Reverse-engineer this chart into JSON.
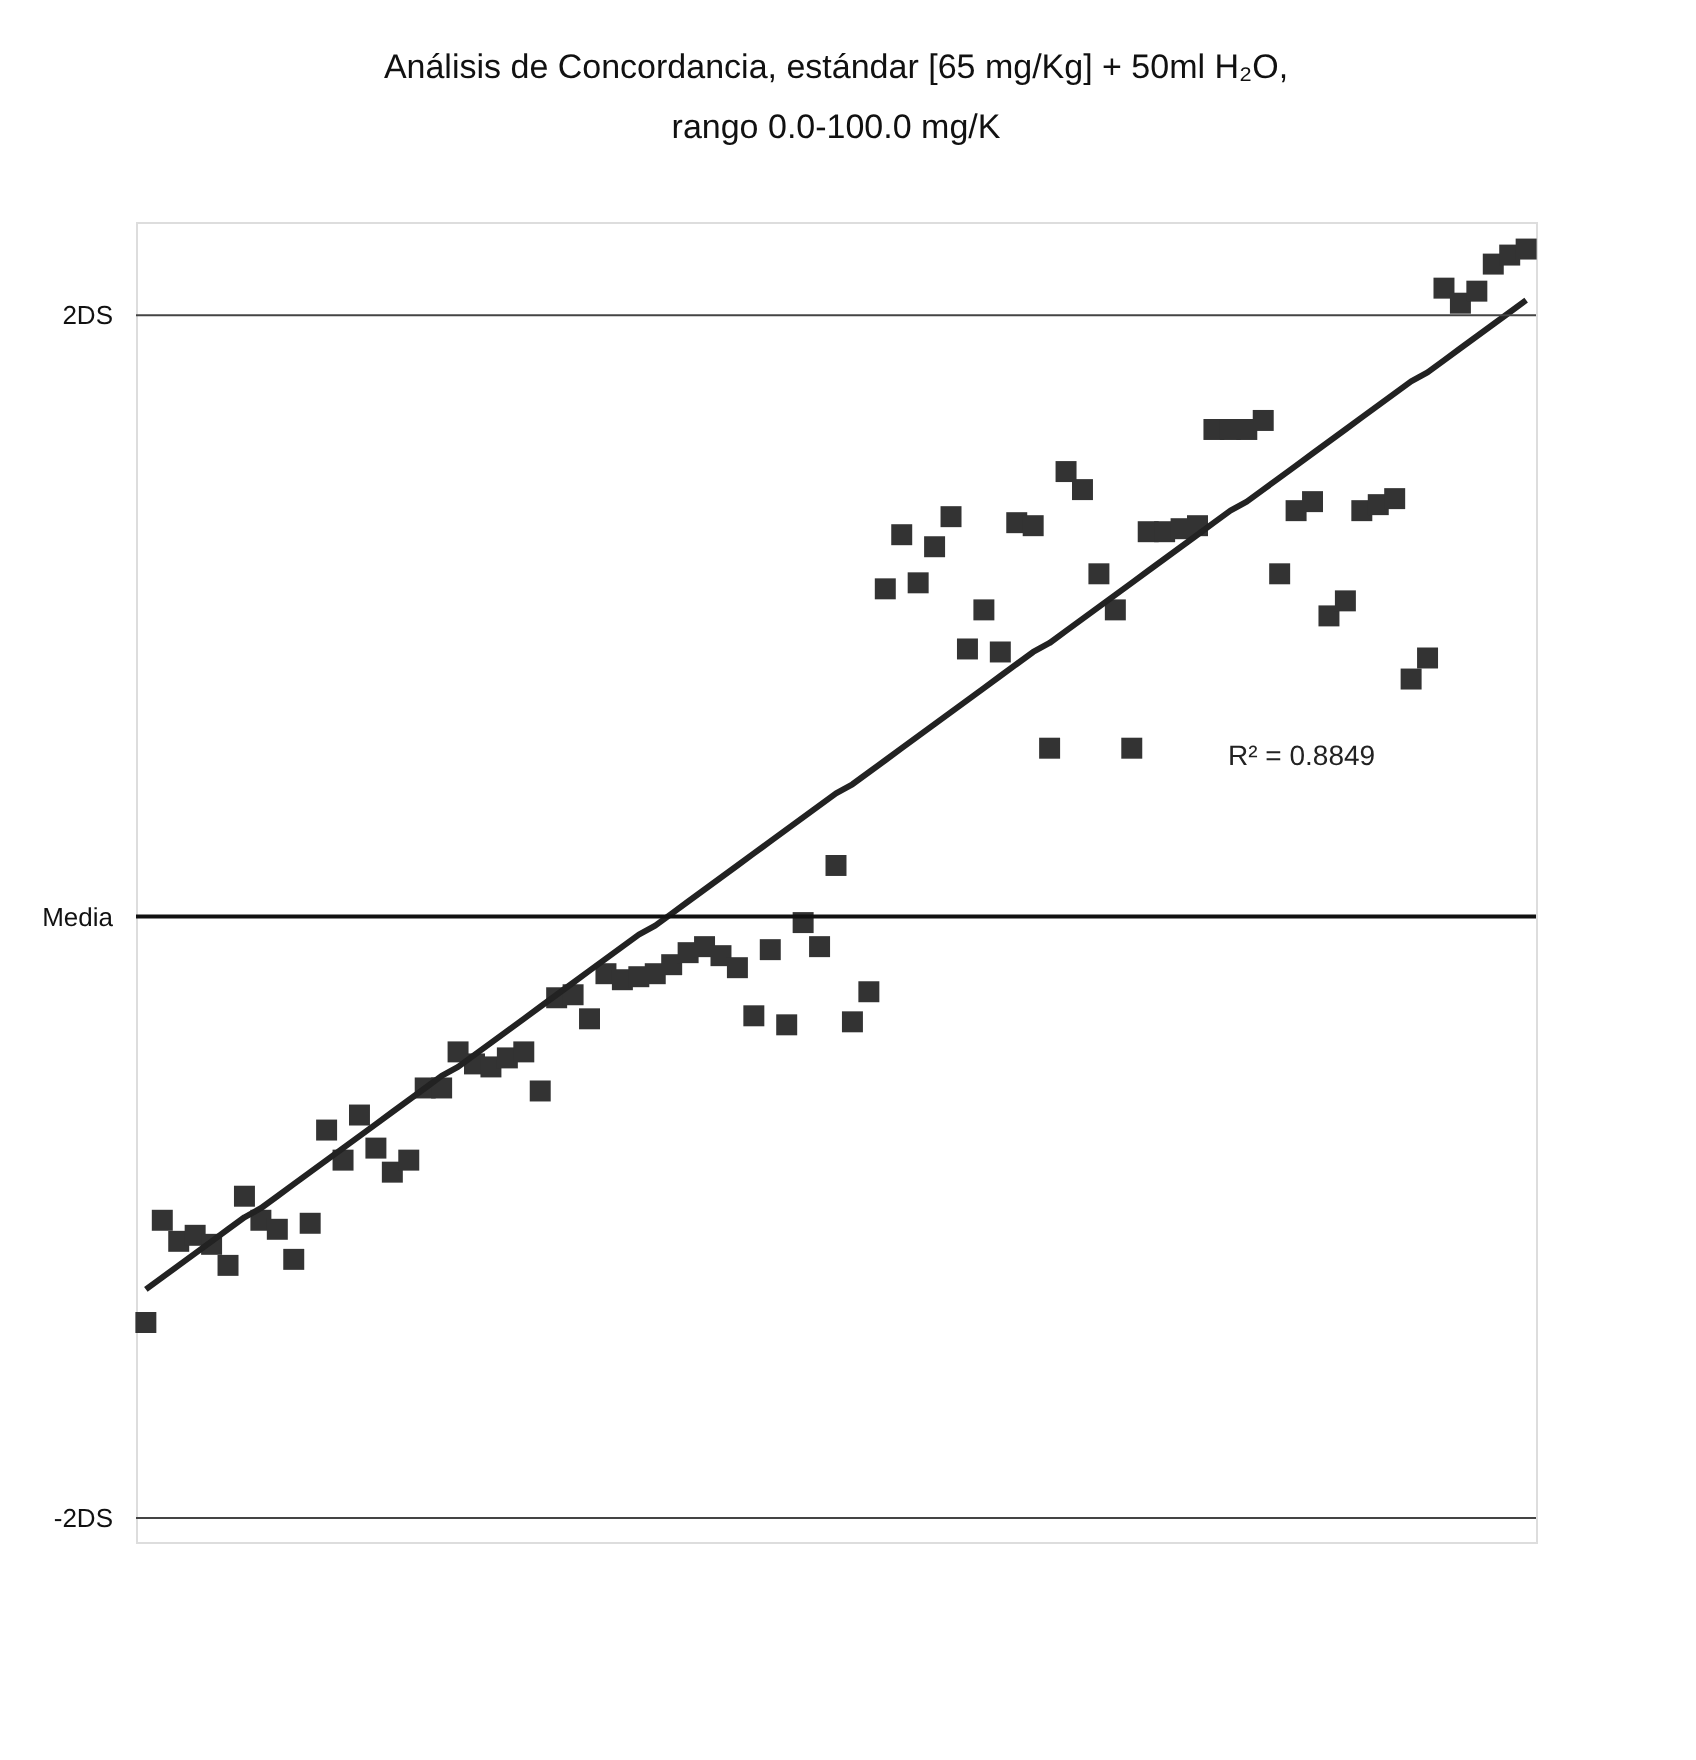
{
  "chart_data": {
    "type": "scatter",
    "title": "Análisis de Concordancia, estándar [65 mg/Kg] + 50ml H₂O,\nrango  0.0-100.0 mg/K",
    "categories": [
      null,
      null,
      null,
      null,
      null,
      null,
      null,
      null,
      null,
      null,
      null,
      null,
      null,
      null,
      null,
      null,
      null,
      null,
      null,
      null,
      null,
      null,
      null,
      null,
      null,
      null,
      null,
      null,
      null,
      null,
      null,
      null,
      null,
      null,
      null,
      null,
      null,
      null,
      null,
      null,
      null,
      null,
      null,
      null,
      null,
      null,
      null,
      null,
      null,
      null,
      null,
      null,
      null,
      null,
      null,
      null,
      null,
      null,
      null,
      null,
      null,
      null,
      null,
      null,
      null,
      null,
      null,
      null,
      null,
      null,
      null,
      null,
      null,
      null,
      null,
      null,
      null,
      null,
      null,
      null,
      null,
      null,
      null,
      null,
      null
    ],
    "series": [
      {
        "color": "#333333",
        "marker": "square",
        "values": [
          -1.35,
          -1.01,
          -1.08,
          -1.06,
          -1.09,
          -1.16,
          -0.93,
          -1.01,
          -1.04,
          -1.14,
          -1.02,
          -0.71,
          -0.81,
          -0.66,
          -0.77,
          -0.85,
          -0.81,
          -0.57,
          -0.57,
          -0.45,
          -0.49,
          -0.5,
          -0.47,
          -0.45,
          -0.58,
          -0.27,
          -0.26,
          -0.34,
          -0.19,
          -0.21,
          -0.2,
          -0.19,
          -0.16,
          -0.12,
          -0.1,
          -0.13,
          -0.17,
          -0.33,
          -0.11,
          -0.36,
          -0.02,
          -0.1,
          0.17,
          -0.35,
          -0.25,
          1.09,
          1.27,
          1.11,
          1.23,
          1.33,
          0.89,
          1.02,
          0.88,
          1.31,
          1.3,
          0.56,
          1.48,
          1.42,
          1.14,
          1.02,
          0.56,
          1.28,
          1.28,
          1.29,
          1.3,
          1.62,
          1.62,
          1.62,
          1.65,
          1.14,
          1.35,
          1.38,
          1.0,
          1.05,
          1.35,
          1.37,
          1.39,
          0.79,
          0.86,
          2.09,
          2.04,
          2.08,
          2.17,
          2.2,
          2.22
        ]
      },
      {
        "type": "line",
        "color": "#222222",
        "marker": "none",
        "line_style": "solid",
        "values": [
          -1.24,
          -1.2,
          -1.16,
          -1.12,
          -1.08,
          -1.04,
          -1.0,
          -0.97,
          -0.93,
          -0.89,
          -0.85,
          -0.81,
          -0.77,
          -0.73,
          -0.69,
          -0.65,
          -0.61,
          -0.57,
          -0.53,
          -0.5,
          -0.46,
          -0.42,
          -0.38,
          -0.34,
          -0.3,
          -0.26,
          -0.22,
          -0.18,
          -0.14,
          -0.1,
          -0.06,
          -0.03,
          0.01,
          0.05,
          0.09,
          0.13,
          0.17,
          0.21,
          0.25,
          0.29,
          0.33,
          0.37,
          0.41,
          0.44,
          0.48,
          0.52,
          0.56,
          0.6,
          0.64,
          0.68,
          0.72,
          0.76,
          0.8,
          0.84,
          0.88,
          0.91,
          0.95,
          0.99,
          1.03,
          1.07,
          1.11,
          1.15,
          1.19,
          1.23,
          1.27,
          1.31,
          1.35,
          1.38,
          1.42,
          1.46,
          1.5,
          1.54,
          1.58,
          1.62,
          1.66,
          1.7,
          1.74,
          1.78,
          1.81,
          1.85,
          1.89,
          1.93,
          1.97,
          2.01,
          2.05
        ]
      }
    ],
    "ylim": [
      -2.08,
      2.31
    ],
    "yticks": [
      {
        "value": 2,
        "label": "2DS"
      },
      {
        "value": 0,
        "label": "Media"
      },
      {
        "value": -2,
        "label": "-2DS"
      }
    ],
    "ref_lines": [
      {
        "axis": "y",
        "value": 2,
        "color": "#444444"
      },
      {
        "axis": "y",
        "value": 0,
        "color": "#111111"
      },
      {
        "axis": "y",
        "value": -2,
        "color": "#444444"
      }
    ],
    "annotations": [
      "R² = 0.8849"
    ],
    "grid": false,
    "tick_labels": "y"
  }
}
